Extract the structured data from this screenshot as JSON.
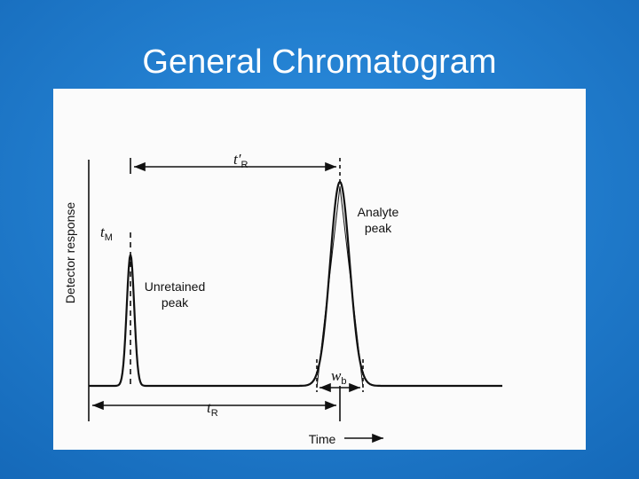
{
  "header": {
    "title": "General Chromatogram"
  },
  "diagram": {
    "y_axis_label": "Detector response",
    "x_axis_label": "Time",
    "dead_time": {
      "symbol": "t",
      "subscript": "M"
    },
    "adjusted_retention_time": {
      "symbol": "t′",
      "subscript": "R"
    },
    "retention_time": {
      "symbol": "t",
      "subscript": "R"
    },
    "peak_width": {
      "symbol": "w",
      "subscript": "b"
    },
    "analyte_peak": [
      "Analyte",
      "peak"
    ],
    "unretained_peak": [
      "Unretained",
      "peak"
    ]
  }
}
